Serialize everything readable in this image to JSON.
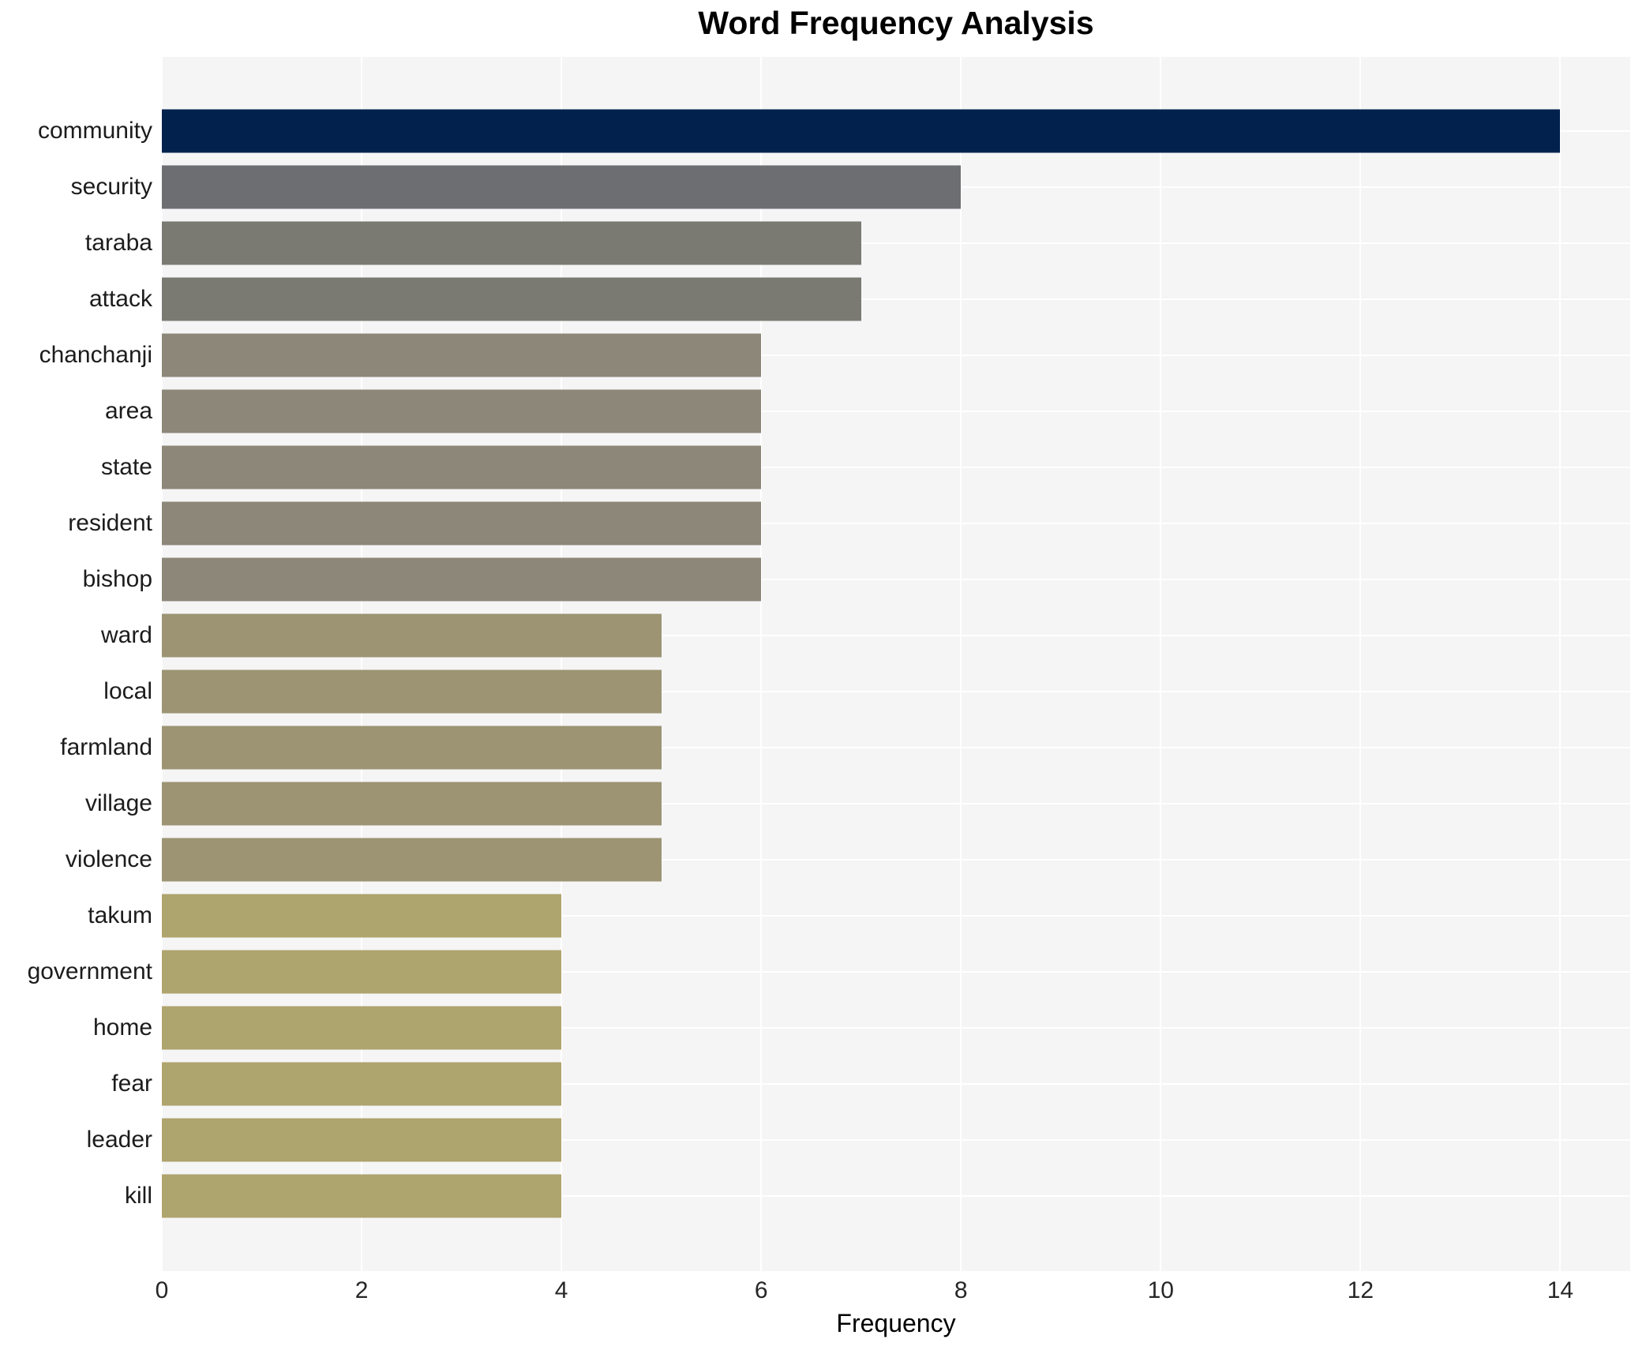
{
  "page": {
    "background": "#ffffff"
  },
  "chart_data": {
    "type": "bar",
    "orientation": "horizontal",
    "title": "Word Frequency Analysis",
    "xlabel": "Frequency",
    "ylabel": "",
    "categories": [
      "community",
      "security",
      "taraba",
      "attack",
      "chanchanji",
      "area",
      "state",
      "resident",
      "bishop",
      "ward",
      "local",
      "farmland",
      "village",
      "violence",
      "takum",
      "government",
      "home",
      "fear",
      "leader",
      "kill"
    ],
    "values": [
      14,
      8,
      7,
      7,
      6,
      6,
      6,
      6,
      6,
      5,
      5,
      5,
      5,
      5,
      4,
      4,
      4,
      4,
      4,
      4
    ],
    "bar_colors": [
      "#02224d",
      "#6c6e72",
      "#7b7a72",
      "#7b7a72",
      "#8d8779",
      "#8d8779",
      "#8d8779",
      "#8d8779",
      "#8d8779",
      "#9c9472",
      "#9c9472",
      "#9c9472",
      "#9c9472",
      "#9c9472",
      "#aea46d",
      "#aea46d",
      "#aea46d",
      "#aea46d",
      "#aea46d",
      "#aea46d"
    ],
    "xlim": [
      0,
      14.7
    ],
    "xticks": [
      0,
      2,
      4,
      6,
      8,
      10,
      12,
      14
    ],
    "grid": true,
    "legend": "none",
    "plot_background": "#f5f5f6",
    "gridline_color": "#ffffff"
  }
}
